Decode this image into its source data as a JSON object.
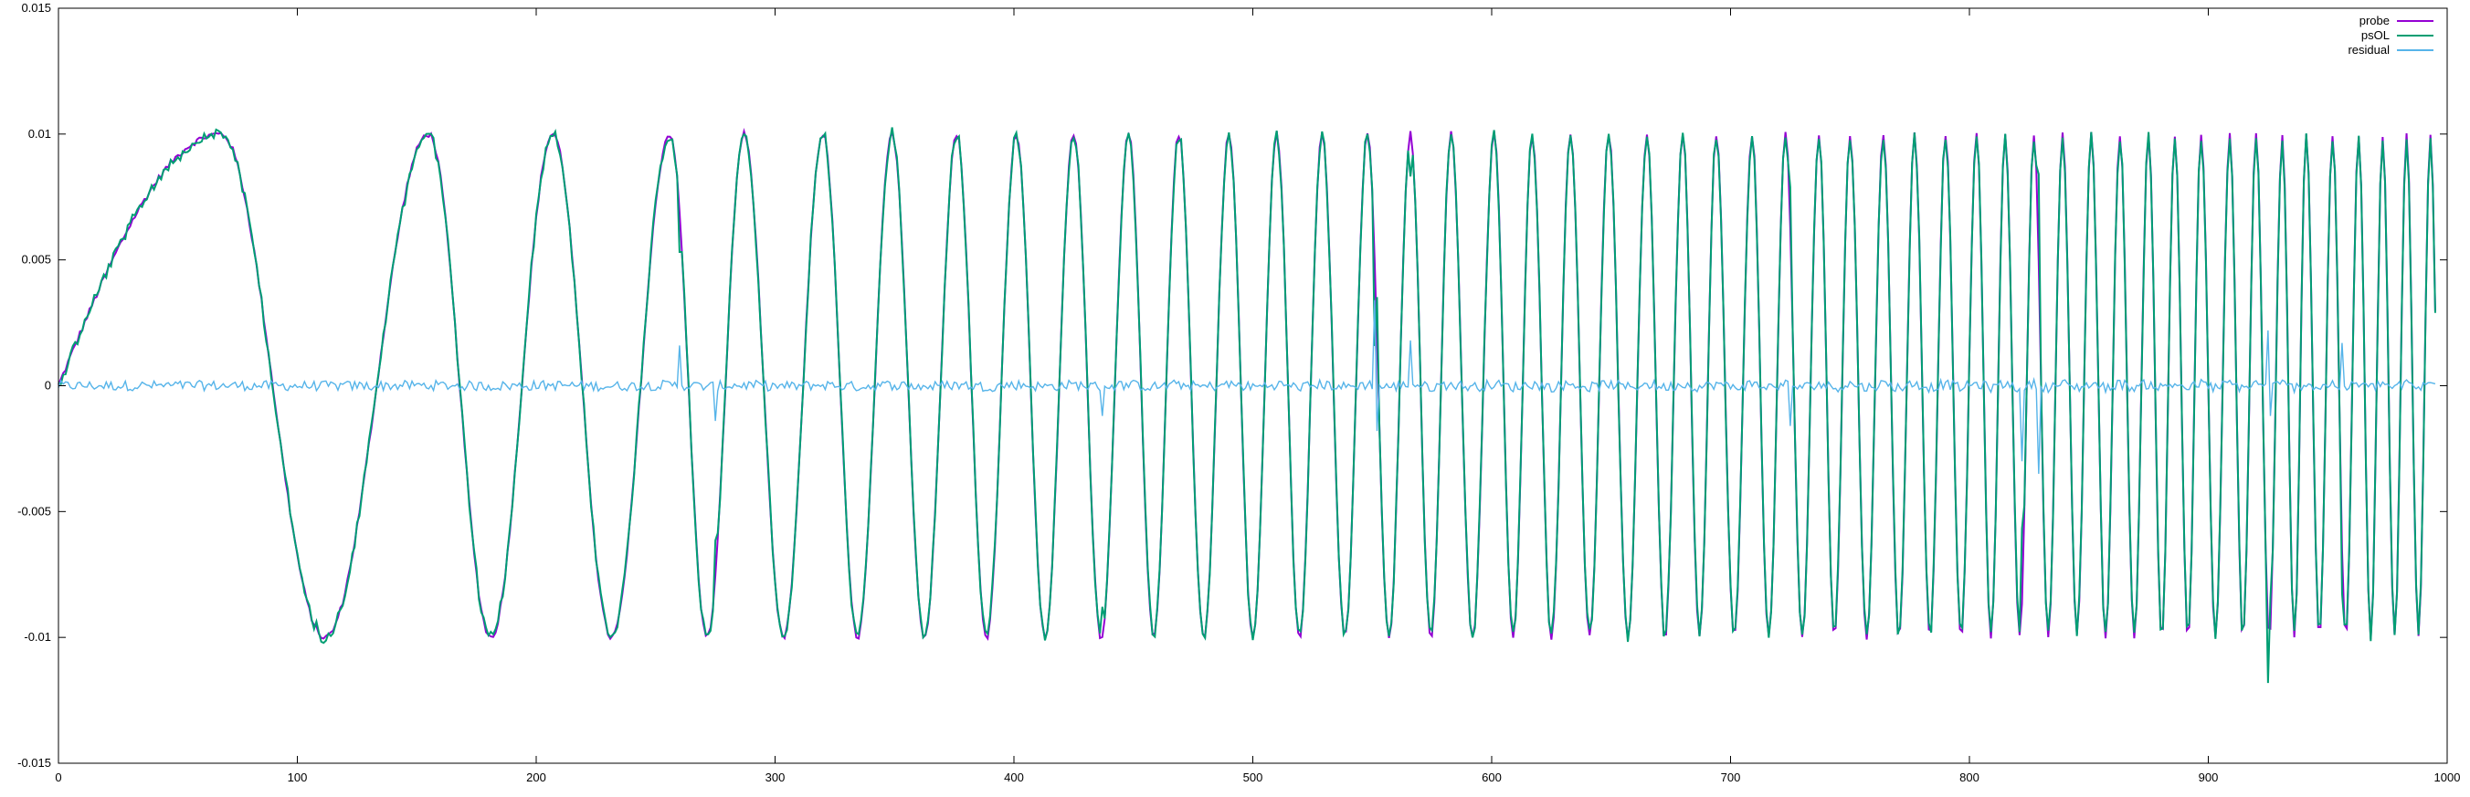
{
  "chart_data": {
    "type": "line",
    "title": "",
    "xlabel": "",
    "ylabel": "",
    "xlim": [
      0,
      1000
    ],
    "ylim": [
      -0.015,
      0.015
    ],
    "x_ticks": [
      "0",
      "100",
      "200",
      "300",
      "400",
      "500",
      "600",
      "700",
      "800",
      "900",
      "1000"
    ],
    "y_ticks": [
      "0.015",
      "0.01",
      "0.005",
      "0",
      "-0.005",
      "-0.01",
      "-0.015"
    ],
    "x_tick_values": [
      0,
      100,
      200,
      300,
      400,
      500,
      600,
      700,
      800,
      900,
      1000
    ],
    "y_tick_values": [
      0.015,
      0.01,
      0.005,
      0,
      -0.005,
      -0.01,
      -0.015
    ],
    "grid": false,
    "legend_position": "top-right",
    "signal": {
      "amplitude": 0.01,
      "length": 995,
      "cycle_peaks_x": [
        68,
        155,
        207,
        256,
        287,
        320,
        349,
        376,
        401,
        425,
        448,
        469,
        490,
        510,
        529,
        548,
        566,
        583,
        601,
        617,
        633,
        649,
        665,
        680,
        694,
        709,
        723,
        737,
        750,
        764,
        777,
        790,
        803,
        815,
        827,
        839,
        851,
        863,
        875,
        886,
        897,
        909,
        920,
        931,
        941,
        952,
        963,
        973,
        983,
        993
      ],
      "residual_noise_amplitude": 0.0002
    },
    "series": [
      {
        "name": "probe",
        "color": "#9400d3"
      },
      {
        "name": "psOL",
        "color": "#009e73"
      },
      {
        "name": "residual",
        "color": "#56b4e9"
      }
    ]
  }
}
